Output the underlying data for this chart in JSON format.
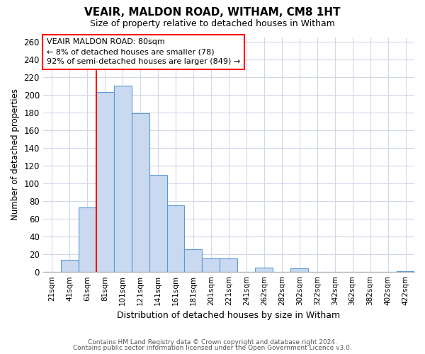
{
  "title": "VEAIR, MALDON ROAD, WITHAM, CM8 1HT",
  "subtitle": "Size of property relative to detached houses in Witham",
  "xlabel": "Distribution of detached houses by size in Witham",
  "ylabel": "Number of detached properties",
  "bar_labels": [
    "21sqm",
    "41sqm",
    "61sqm",
    "81sqm",
    "101sqm",
    "121sqm",
    "141sqm",
    "161sqm",
    "181sqm",
    "201sqm",
    "221sqm",
    "241sqm",
    "262sqm",
    "282sqm",
    "302sqm",
    "322sqm",
    "342sqm",
    "362sqm",
    "382sqm",
    "402sqm",
    "422sqm"
  ],
  "bar_values": [
    0,
    14,
    73,
    203,
    210,
    179,
    110,
    75,
    26,
    15,
    15,
    0,
    5,
    0,
    4,
    0,
    0,
    0,
    0,
    0,
    1
  ],
  "bar_color": "#c9d9f0",
  "bar_edge_color": "#5b9bd5",
  "ylim": [
    0,
    265
  ],
  "yticks": [
    0,
    20,
    40,
    60,
    80,
    100,
    120,
    140,
    160,
    180,
    200,
    220,
    240,
    260
  ],
  "property_label": "VEAIR MALDON ROAD: 80sqm",
  "annotation_line1": "← 8% of detached houses are smaller (78)",
  "annotation_line2": "92% of semi-detached houses are larger (849) →",
  "footer_line1": "Contains HM Land Registry data © Crown copyright and database right 2024.",
  "footer_line2": "Contains public sector information licensed under the Open Government Licence v3.0.",
  "bg_color": "#ffffff",
  "grid_color": "#d0d8e8",
  "red_line_index": 3
}
